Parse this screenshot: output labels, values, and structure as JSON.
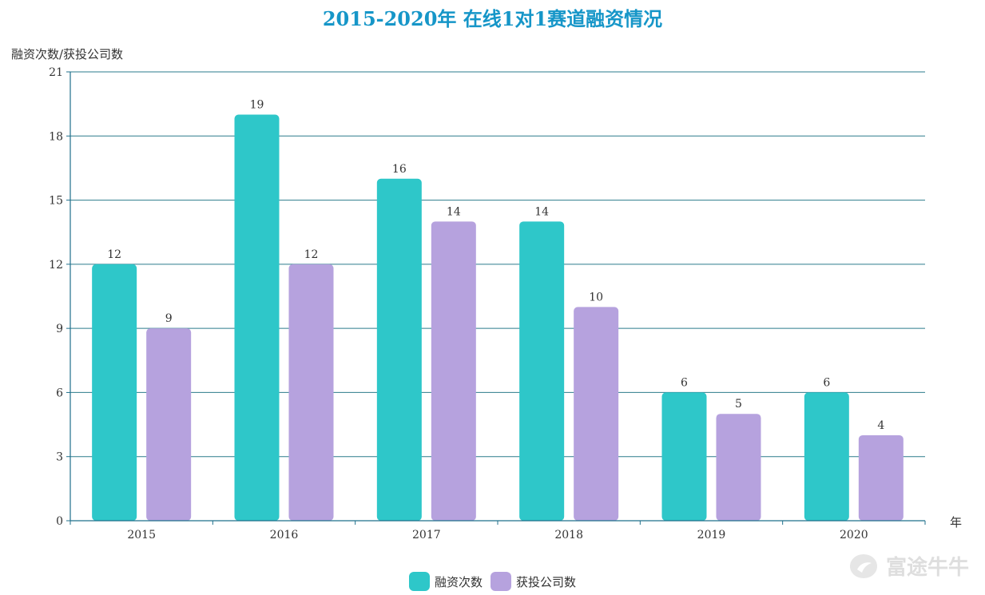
{
  "chart_data": {
    "type": "bar",
    "title": "2015-2020年 在线1对1赛道融资情况",
    "ylabel": "融资次数/获投公司数",
    "xlabel": "年",
    "categories": [
      "2015",
      "2016",
      "2017",
      "2018",
      "2019",
      "2020"
    ],
    "series": [
      {
        "name": "融资次数",
        "values": [
          12,
          19,
          16,
          14,
          6,
          6
        ],
        "color": "#2ec7c9"
      },
      {
        "name": "获投公司数",
        "values": [
          9,
          12,
          14,
          10,
          5,
          4
        ],
        "color": "#b6a2de"
      }
    ],
    "ylim": [
      0,
      21
    ],
    "yticks": [
      0,
      3,
      6,
      9,
      12,
      15,
      18,
      21
    ],
    "grid": true,
    "legend_position": "bottom-center",
    "data_labels": true
  },
  "colors": {
    "title": "#1696c8",
    "axis": "#1f6f8b",
    "grid": "#2b7b8c"
  },
  "watermark": {
    "text": "富途牛牛",
    "icon": "futu-logo-icon"
  }
}
